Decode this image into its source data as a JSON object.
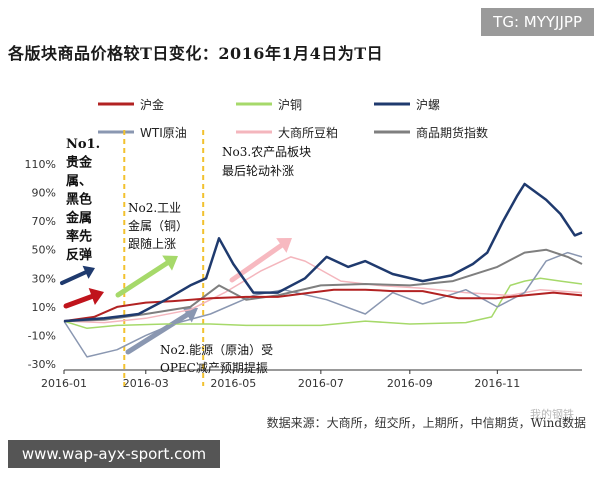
{
  "tag": "TG: MYYJJPP",
  "url": "www.wap-ayx-sport.com",
  "title": "各版块商品价格较T日变化：2016年1月4日为T日",
  "source": "数据来源：大商所，纽交所，上期所，中信期货，Wind数据",
  "watermark": "我的钢铁",
  "colors": {
    "gold": "#b22222",
    "copper": "#a6d96a",
    "rebar": "#1f3a6e",
    "wti": "#8a97b1",
    "soybean": "#f4b6bd",
    "index": "#7f7f7f",
    "arrow_red": "#c0141c",
    "arrow_green": "#a6d96a",
    "arrow_pink": "#f7b9c0",
    "arrow_grey": "#8a97b1",
    "arrow_navy": "#1f3a6e",
    "phase_line": "#f2c12e"
  },
  "annotations": {
    "no1": [
      "No1.",
      "贵金",
      "属、",
      "黑色",
      "金属",
      "率先",
      "反弹"
    ],
    "no2": [
      "No2.工业",
      "金属（铜）",
      "跟随上涨"
    ],
    "no3": [
      "No3.农产品板块",
      "最后轮动补涨"
    ],
    "no2b": [
      "No2.能源（原油）受",
      "OPEC减产预期提振"
    ]
  },
  "chart_data": {
    "type": "line",
    "title": "各版块商品价格较T日变化：2016年1月4日为T日",
    "xlabel": "",
    "ylabel": "",
    "x_range": [
      "2016-01-04",
      "2016-12-30"
    ],
    "ylim": [
      -30,
      110
    ],
    "yticks": [
      "-30%",
      "-10%",
      "10%",
      "30%",
      "50%",
      "70%",
      "90%",
      "110%"
    ],
    "ytick_values": [
      -30,
      -10,
      10,
      30,
      50,
      70,
      90,
      110
    ],
    "xticks": [
      "2016-01",
      "2016-03",
      "2016-05",
      "2016-07",
      "2016-09",
      "2016-11"
    ],
    "xtick_dates": [
      "2016-01-04",
      "2016-03-01",
      "2016-05-01",
      "2016-07-01",
      "2016-09-01",
      "2016-11-01"
    ],
    "phase_dividers": [
      "2016-02-15",
      "2016-04-10"
    ],
    "legend_placement": "top",
    "grid": false,
    "series": [
      {
        "name": "沪金",
        "key": "gold",
        "width": 2,
        "points": [
          [
            "2016-01-04",
            0
          ],
          [
            "2016-01-25",
            3
          ],
          [
            "2016-02-10",
            10
          ],
          [
            "2016-03-01",
            13
          ],
          [
            "2016-03-20",
            14
          ],
          [
            "2016-04-15",
            16
          ],
          [
            "2016-05-10",
            17
          ],
          [
            "2016-06-01",
            17
          ],
          [
            "2016-06-24",
            20
          ],
          [
            "2016-07-10",
            22
          ],
          [
            "2016-08-01",
            22
          ],
          [
            "2016-08-20",
            21
          ],
          [
            "2016-09-10",
            21
          ],
          [
            "2016-10-05",
            16
          ],
          [
            "2016-10-31",
            16
          ],
          [
            "2016-11-20",
            18
          ],
          [
            "2016-12-10",
            20
          ],
          [
            "2016-12-30",
            18
          ]
        ]
      },
      {
        "name": "沪铜",
        "key": "copper",
        "width": 1.5,
        "points": [
          [
            "2016-01-04",
            0
          ],
          [
            "2016-01-20",
            -5
          ],
          [
            "2016-02-10",
            -3
          ],
          [
            "2016-03-15",
            -2
          ],
          [
            "2016-04-15",
            -2
          ],
          [
            "2016-05-10",
            -3
          ],
          [
            "2016-06-01",
            -3
          ],
          [
            "2016-07-01",
            -3
          ],
          [
            "2016-08-01",
            0
          ],
          [
            "2016-09-01",
            -2
          ],
          [
            "2016-10-10",
            -1
          ],
          [
            "2016-10-28",
            3
          ],
          [
            "2016-11-10",
            25
          ],
          [
            "2016-11-20",
            28
          ],
          [
            "2016-12-01",
            30
          ],
          [
            "2016-12-15",
            28
          ],
          [
            "2016-12-30",
            26
          ]
        ]
      },
      {
        "name": "沪螺",
        "key": "rebar",
        "width": 2.5,
        "points": [
          [
            "2016-01-04",
            0
          ],
          [
            "2016-02-01",
            2
          ],
          [
            "2016-02-25",
            5
          ],
          [
            "2016-03-15",
            15
          ],
          [
            "2016-04-01",
            25
          ],
          [
            "2016-04-12",
            30
          ],
          [
            "2016-04-21",
            58
          ],
          [
            "2016-05-01",
            40
          ],
          [
            "2016-05-15",
            20
          ],
          [
            "2016-06-01",
            20
          ],
          [
            "2016-06-20",
            30
          ],
          [
            "2016-07-05",
            45
          ],
          [
            "2016-07-20",
            38
          ],
          [
            "2016-08-01",
            42
          ],
          [
            "2016-08-20",
            33
          ],
          [
            "2016-09-10",
            28
          ],
          [
            "2016-09-30",
            32
          ],
          [
            "2016-10-15",
            40
          ],
          [
            "2016-10-25",
            48
          ],
          [
            "2016-11-05",
            70
          ],
          [
            "2016-11-15",
            88
          ],
          [
            "2016-11-20",
            96
          ],
          [
            "2016-12-05",
            85
          ],
          [
            "2016-12-15",
            75
          ],
          [
            "2016-12-25",
            60
          ],
          [
            "2016-12-30",
            62
          ]
        ]
      },
      {
        "name": "WTI原油",
        "key": "wti",
        "width": 1.5,
        "points": [
          [
            "2016-01-04",
            0
          ],
          [
            "2016-01-20",
            -25
          ],
          [
            "2016-02-10",
            -20
          ],
          [
            "2016-03-01",
            -10
          ],
          [
            "2016-03-20",
            -2
          ],
          [
            "2016-04-15",
            5
          ],
          [
            "2016-05-15",
            18
          ],
          [
            "2016-06-05",
            22
          ],
          [
            "2016-07-05",
            15
          ],
          [
            "2016-08-01",
            5
          ],
          [
            "2016-08-20",
            20
          ],
          [
            "2016-09-10",
            12
          ],
          [
            "2016-10-10",
            22
          ],
          [
            "2016-11-01",
            10
          ],
          [
            "2016-11-20",
            20
          ],
          [
            "2016-12-05",
            42
          ],
          [
            "2016-12-20",
            48
          ],
          [
            "2016-12-30",
            45
          ]
        ]
      },
      {
        "name": "大商所豆粕",
        "key": "soybean",
        "width": 1.5,
        "points": [
          [
            "2016-01-04",
            0
          ],
          [
            "2016-02-01",
            -1
          ],
          [
            "2016-03-01",
            2
          ],
          [
            "2016-04-01",
            8
          ],
          [
            "2016-04-25",
            20
          ],
          [
            "2016-05-20",
            35
          ],
          [
            "2016-06-10",
            45
          ],
          [
            "2016-06-20",
            42
          ],
          [
            "2016-07-15",
            28
          ],
          [
            "2016-08-10",
            25
          ],
          [
            "2016-09-10",
            23
          ],
          [
            "2016-10-10",
            20
          ],
          [
            "2016-11-10",
            18
          ],
          [
            "2016-12-01",
            22
          ],
          [
            "2016-12-30",
            20
          ]
        ]
      },
      {
        "name": "商品期货指数",
        "key": "index",
        "width": 2,
        "points": [
          [
            "2016-01-04",
            0
          ],
          [
            "2016-02-01",
            1
          ],
          [
            "2016-03-01",
            5
          ],
          [
            "2016-04-01",
            10
          ],
          [
            "2016-04-21",
            25
          ],
          [
            "2016-05-10",
            15
          ],
          [
            "2016-06-01",
            18
          ],
          [
            "2016-07-01",
            25
          ],
          [
            "2016-08-01",
            26
          ],
          [
            "2016-09-01",
            25
          ],
          [
            "2016-10-01",
            28
          ],
          [
            "2016-11-01",
            38
          ],
          [
            "2016-11-20",
            48
          ],
          [
            "2016-12-05",
            50
          ],
          [
            "2016-12-20",
            45
          ],
          [
            "2016-12-30",
            40
          ]
        ]
      }
    ]
  }
}
